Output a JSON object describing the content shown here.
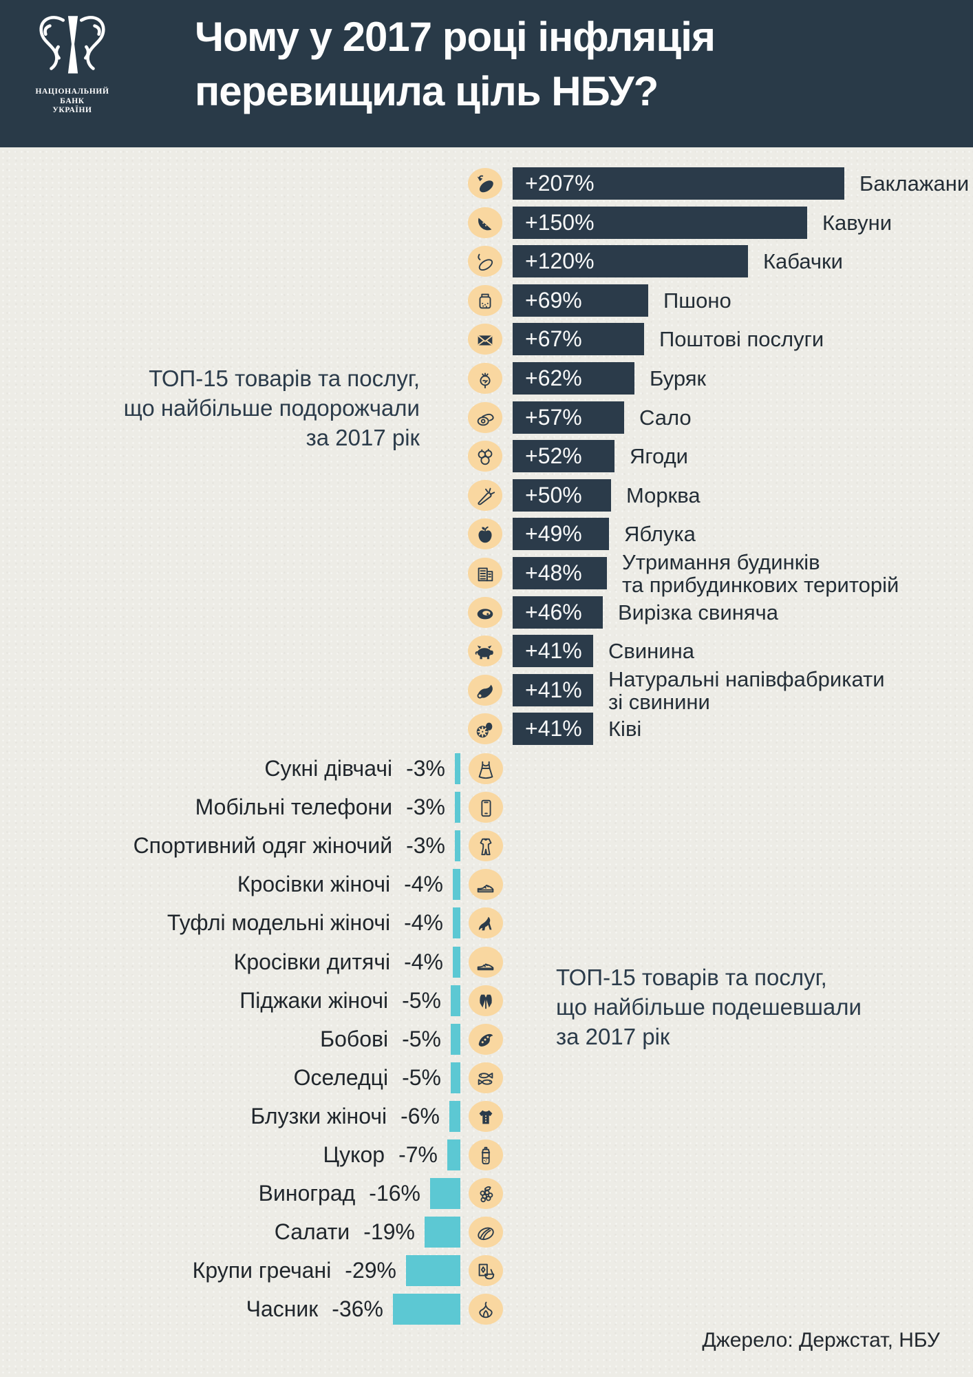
{
  "header": {
    "title_line1": "Чому у 2017 році інфляція",
    "title_line2": "перевищила ціль НБУ?",
    "logo": {
      "bank_name_lines": [
        "НАЦІОНАЛЬНИЙ",
        "БАНК",
        "УКРАЇНИ"
      ]
    }
  },
  "annotations": {
    "increase_label": "ТОП-15 товарів та послуг,\nщо найбільше подорожчали\nза 2017 рік",
    "decrease_label": "ТОП-15 товарів та послуг,\nщо найбільше подешевшали\nза 2017 рік"
  },
  "source_note": "Джерело: Держстат, НБУ",
  "colors": {
    "header_bg": "#293a48",
    "increase_bar": "#2b3b4a",
    "decrease_bar": "#5cc8d3",
    "icon_circle": "#f9d7a0",
    "background": "#edece6",
    "dark_text": "#2b3b4a",
    "light_text": "#f7f8f8"
  },
  "chart_data": {
    "type": "bar",
    "orientation": "horizontal",
    "unit": "% зміна ціни за 2017 рік",
    "title": "Чому у 2017 році інфляція перевищила ціль НБУ?",
    "legend": false,
    "series": [
      {
        "name": "ТОП-15 товарів та послуг, що найбільше подорожчали за 2017 рік",
        "direction": "increase",
        "bar_color": "#2b3b4a",
        "items": [
          {
            "label": "Баклажани",
            "value": 207,
            "display": "+207%",
            "icon": "eggplant-icon"
          },
          {
            "label": "Кавуни",
            "value": 150,
            "display": "+150%",
            "icon": "watermelon-icon"
          },
          {
            "label": "Кабачки",
            "value": 120,
            "display": "+120%",
            "icon": "zucchini-icon"
          },
          {
            "label": "Пшоно",
            "value": 69,
            "display": "+69%",
            "icon": "millet-jar-icon"
          },
          {
            "label": "Поштові послуги",
            "value": 67,
            "display": "+67%",
            "icon": "envelope-icon"
          },
          {
            "label": "Буряк",
            "value": 62,
            "display": "+62%",
            "icon": "beet-icon"
          },
          {
            "label": "Сало",
            "value": 57,
            "display": "+57%",
            "icon": "salo-icon"
          },
          {
            "label": "Ягоди",
            "value": 52,
            "display": "+52%",
            "icon": "berries-icon"
          },
          {
            "label": "Морква",
            "value": 50,
            "display": "+50%",
            "icon": "carrot-icon"
          },
          {
            "label": "Яблука",
            "value": 49,
            "display": "+49%",
            "icon": "apple-icon"
          },
          {
            "label": "Утримання будинків\nта прибудинкових територій",
            "value": 48,
            "display": "+48%",
            "icon": "building-icon"
          },
          {
            "label": "Вирізка свиняча",
            "value": 46,
            "display": "+46%",
            "icon": "steak-icon"
          },
          {
            "label": "Свинина",
            "value": 41,
            "display": "+41%",
            "icon": "pig-icon"
          },
          {
            "label": "Натуральні напівфабрикати\nзі свинини",
            "value": 41,
            "display": "+41%",
            "icon": "ham-icon"
          },
          {
            "label": "Ківі",
            "value": 41,
            "display": "+41%",
            "icon": "kiwi-icon"
          }
        ]
      },
      {
        "name": "ТОП-15 товарів та послуг, що найбільше подешевшали за 2017 рік",
        "direction": "decrease",
        "bar_color": "#5cc8d3",
        "items": [
          {
            "label": "Сукні дівчачі",
            "value": -3,
            "display": "-3%",
            "icon": "dress-icon"
          },
          {
            "label": "Мобільні телефони",
            "value": -3,
            "display": "-3%",
            "icon": "mobile-phone-icon"
          },
          {
            "label": "Спортивний одяг жіночий",
            "value": -3,
            "display": "-3%",
            "icon": "sportswear-icon"
          },
          {
            "label": "Кросівки жіночі",
            "value": -4,
            "display": "-4%",
            "icon": "sneaker-icon"
          },
          {
            "label": "Туфлі модельні жіночі",
            "value": -4,
            "display": "-4%",
            "icon": "high-heel-icon"
          },
          {
            "label": "Кросівки дитячі",
            "value": -4,
            "display": "-4%",
            "icon": "kids-sneaker-icon"
          },
          {
            "label": "Піджаки жіночі",
            "value": -5,
            "display": "-5%",
            "icon": "blazer-icon"
          },
          {
            "label": "Бобові",
            "value": -5,
            "display": "-5%",
            "icon": "beans-icon"
          },
          {
            "label": "Оселедці",
            "value": -5,
            "display": "-5%",
            "icon": "herring-icon"
          },
          {
            "label": "Блузки жіночі",
            "value": -6,
            "display": "-6%",
            "icon": "blouse-icon"
          },
          {
            "label": "Цукор",
            "value": -7,
            "display": "-7%",
            "icon": "sugar-icon"
          },
          {
            "label": "Виноград",
            "value": -16,
            "display": "-16%",
            "icon": "grapes-icon"
          },
          {
            "label": "Салати",
            "value": -19,
            "display": "-19%",
            "icon": "salad-icon"
          },
          {
            "label": "Крупи гречані",
            "value": -29,
            "display": "-29%",
            "icon": "buckwheat-icon"
          },
          {
            "label": "Часник",
            "value": -36,
            "display": "-36%",
            "icon": "garlic-icon"
          }
        ]
      }
    ]
  }
}
